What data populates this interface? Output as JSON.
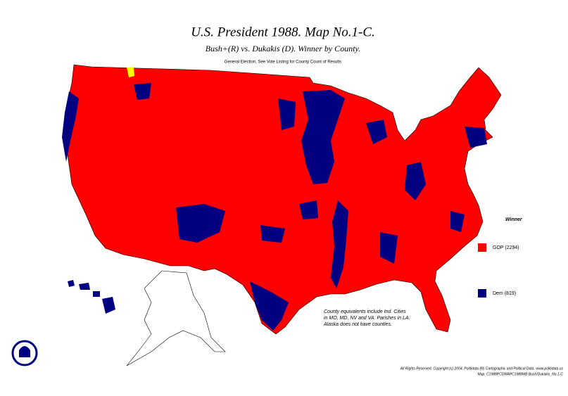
{
  "header": {
    "title": "U.S. President 1988. Map No.1-C.",
    "subtitle": "Bush+(R) vs. Dukakis (D). Winner by County.",
    "note": "General Election, See Vote Listing for County Count of Results"
  },
  "legend": {
    "title": "Winner",
    "items": [
      {
        "label": "GOP (2294)",
        "color": "#ff0000"
      },
      {
        "label": "Dem (819)",
        "color": "#000080"
      }
    ]
  },
  "annotation": [
    "County equivalents include Ind. Cities",
    "in MO, MD, NV and VA. Parishes in LA.",
    "Alaska does not have counties."
  ],
  "footer": [
    "All Rights Reserved. Copyright (c) 2004, Politidata (R) Cartographic and Political Data. www.politidata.us",
    "Map: C1988PCDMAPC1988MB Bush/Dukakis_No.1-C"
  ]
}
